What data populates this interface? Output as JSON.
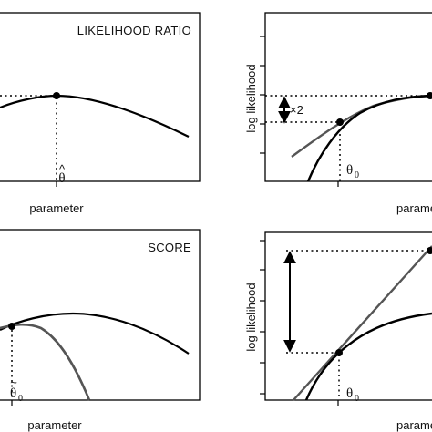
{
  "panels": {
    "likelihood_ratio": {
      "title": "LIKELIHOOD RATIO",
      "xlabel": "parameter",
      "marker_symbol": "θ",
      "marker_accent": "^"
    },
    "wald": {
      "ylabel": "log likelihood",
      "xlabel": "parameter",
      "marker_symbol": "θ",
      "marker_subscript": "0",
      "gap_annotation": "×2"
    },
    "score": {
      "title": "SCORE",
      "xlabel": "parameter",
      "marker_symbol": "θ",
      "marker_subscript": "0",
      "marker_accent": "~"
    },
    "tangent": {
      "ylabel": "log likelihood",
      "xlabel": "parameter",
      "marker_symbol": "θ",
      "marker_subscript": "0"
    }
  },
  "colors": {
    "ink": "#000000",
    "gray_curve": "#555555"
  }
}
